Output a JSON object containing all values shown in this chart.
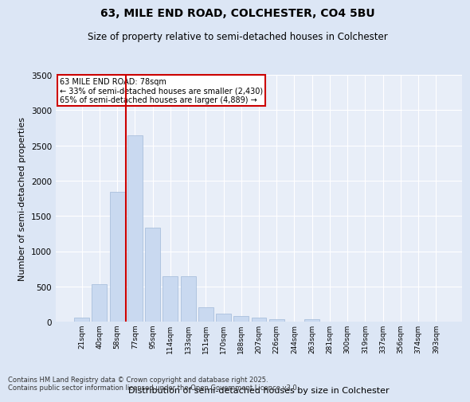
{
  "title1": "63, MILE END ROAD, COLCHESTER, CO4 5BU",
  "title2": "Size of property relative to semi-detached houses in Colchester",
  "xlabel": "Distribution of semi-detached houses by size in Colchester",
  "ylabel": "Number of semi-detached properties",
  "categories": [
    "21sqm",
    "40sqm",
    "58sqm",
    "77sqm",
    "95sqm",
    "114sqm",
    "133sqm",
    "151sqm",
    "170sqm",
    "188sqm",
    "207sqm",
    "226sqm",
    "244sqm",
    "263sqm",
    "281sqm",
    "300sqm",
    "319sqm",
    "337sqm",
    "356sqm",
    "374sqm",
    "393sqm"
  ],
  "values": [
    60,
    530,
    1840,
    2640,
    1330,
    640,
    640,
    200,
    120,
    80,
    55,
    40,
    0,
    35,
    0,
    0,
    0,
    0,
    0,
    0,
    0
  ],
  "bar_color": "#c9d9f0",
  "bar_edge_color": "#a0b8d8",
  "vline_index": 3,
  "vline_color": "#cc0000",
  "annotation_text": "63 MILE END ROAD: 78sqm\n← 33% of semi-detached houses are smaller (2,430)\n65% of semi-detached houses are larger (4,889) →",
  "box_edge_color": "#cc0000",
  "ylim": [
    0,
    3500
  ],
  "yticks": [
    0,
    500,
    1000,
    1500,
    2000,
    2500,
    3000,
    3500
  ],
  "footnote": "Contains HM Land Registry data © Crown copyright and database right 2025.\nContains public sector information licensed under the Open Government Licence v3.0.",
  "bg_color": "#dce6f5",
  "plot_bg_color": "#e8eef8"
}
